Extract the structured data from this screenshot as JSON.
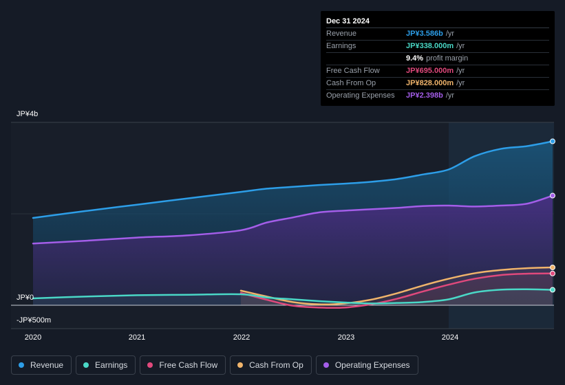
{
  "chart_data": {
    "type": "area",
    "x_ticks": [
      "2020",
      "2021",
      "2022",
      "2023",
      "2024"
    ],
    "y_axis_labels": {
      "top": "JP¥4b",
      "zero": "JP¥0",
      "bottom": "-JP¥500m"
    },
    "ylim": [
      -0.5,
      4.0
    ],
    "unit": "JP¥ billions",
    "forecast_shade_start": 2024.0,
    "series": [
      {
        "name": "Revenue",
        "color": "#2d9ee8",
        "x": [
          2020.0,
          2020.5,
          2021.0,
          2021.5,
          2022.0,
          2022.25,
          2022.5,
          2022.75,
          2023.0,
          2023.25,
          2023.5,
          2023.75,
          2024.0,
          2024.25,
          2024.5,
          2024.75,
          2025.0
        ],
        "values": [
          1.91,
          2.06,
          2.2,
          2.34,
          2.48,
          2.55,
          2.59,
          2.63,
          2.66,
          2.7,
          2.76,
          2.86,
          2.97,
          3.26,
          3.42,
          3.48,
          3.586
        ]
      },
      {
        "name": "Earnings",
        "color": "#4ad8c7",
        "x": [
          2020.0,
          2020.5,
          2021.0,
          2021.5,
          2022.0,
          2022.25,
          2022.5,
          2022.75,
          2023.0,
          2023.25,
          2023.5,
          2023.75,
          2024.0,
          2024.25,
          2024.5,
          2024.75,
          2025.0
        ],
        "values": [
          0.15,
          0.19,
          0.22,
          0.23,
          0.24,
          0.17,
          0.13,
          0.09,
          0.06,
          0.04,
          0.05,
          0.07,
          0.13,
          0.28,
          0.34,
          0.35,
          0.338
        ]
      },
      {
        "name": "Free Cash Flow",
        "color": "#e0497c",
        "x": [
          2022.0,
          2022.25,
          2022.5,
          2022.75,
          2023.0,
          2023.25,
          2023.5,
          2023.75,
          2024.0,
          2024.25,
          2024.5,
          2024.75,
          2025.0
        ],
        "values": [
          0.27,
          0.12,
          -0.01,
          -0.05,
          -0.05,
          0.02,
          0.14,
          0.3,
          0.45,
          0.58,
          0.66,
          0.69,
          0.695
        ]
      },
      {
        "name": "Cash From Op",
        "color": "#f0b46b",
        "x": [
          2022.0,
          2022.25,
          2022.5,
          2022.75,
          2023.0,
          2023.25,
          2023.5,
          2023.75,
          2024.0,
          2024.25,
          2024.5,
          2024.75,
          2025.0
        ],
        "values": [
          0.32,
          0.19,
          0.07,
          0.02,
          0.04,
          0.12,
          0.26,
          0.43,
          0.58,
          0.7,
          0.77,
          0.81,
          0.828
        ]
      },
      {
        "name": "Operating Expenses",
        "color": "#a45ee9",
        "x": [
          2020.0,
          2020.5,
          2021.0,
          2021.5,
          2022.0,
          2022.25,
          2022.5,
          2022.75,
          2023.0,
          2023.25,
          2023.5,
          2023.75,
          2024.0,
          2024.25,
          2024.5,
          2024.75,
          2025.0
        ],
        "values": [
          1.35,
          1.41,
          1.48,
          1.53,
          1.64,
          1.81,
          1.92,
          2.03,
          2.07,
          2.1,
          2.13,
          2.17,
          2.18,
          2.16,
          2.18,
          2.22,
          2.398
        ]
      }
    ]
  },
  "tooltip": {
    "date": "Dec 31 2024",
    "rows": [
      {
        "label": "Revenue",
        "value": "JP¥3.586b",
        "unit": "/yr",
        "color": "#2d9ee8"
      },
      {
        "label": "Earnings",
        "value": "JP¥338.000m",
        "unit": "/yr",
        "color": "#4ad8c7"
      },
      {
        "label": "",
        "value": "9.4%",
        "unit": "profit margin",
        "color": "#ffffff"
      },
      {
        "label": "Free Cash Flow",
        "value": "JP¥695.000m",
        "unit": "/yr",
        "color": "#e0497c"
      },
      {
        "label": "Cash From Op",
        "value": "JP¥828.000m",
        "unit": "/yr",
        "color": "#f0b46b"
      },
      {
        "label": "Operating Expenses",
        "value": "JP¥2.398b",
        "unit": "/yr",
        "color": "#a45ee9"
      }
    ]
  },
  "legend": [
    {
      "label": "Revenue",
      "color": "#2d9ee8"
    },
    {
      "label": "Earnings",
      "color": "#4ad8c7"
    },
    {
      "label": "Free Cash Flow",
      "color": "#e0497c"
    },
    {
      "label": "Cash From Op",
      "color": "#f0b46b"
    },
    {
      "label": "Operating Expenses",
      "color": "#a45ee9"
    }
  ]
}
